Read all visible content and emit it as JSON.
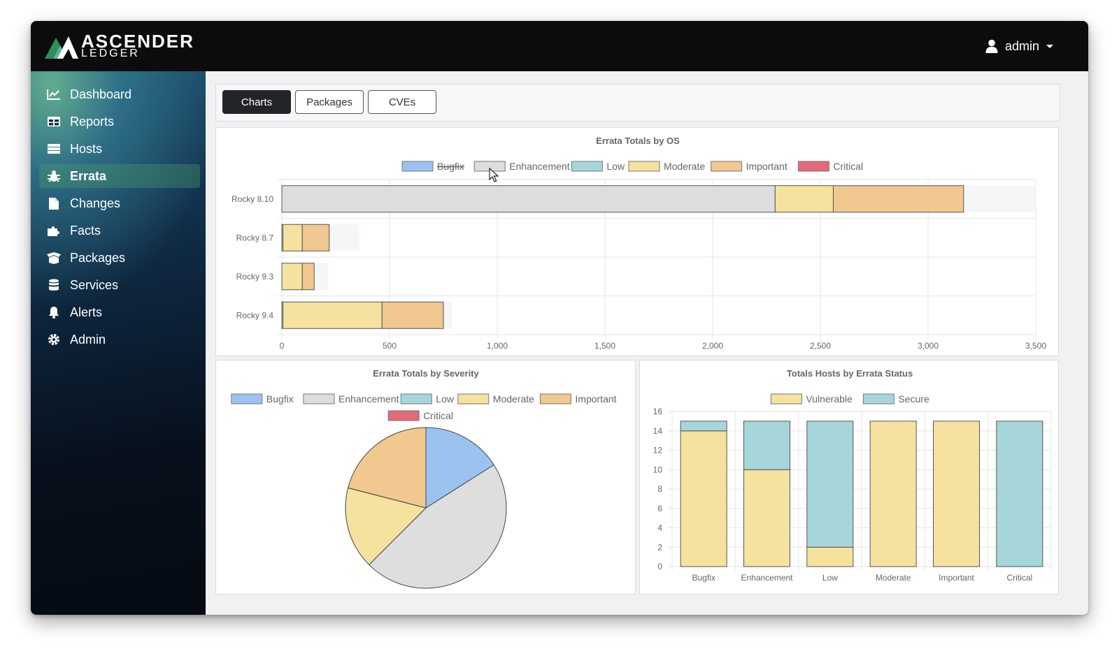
{
  "app": {
    "brand_top": "ASCENDER",
    "brand_bottom": "LEDGER",
    "user": "admin"
  },
  "colors": {
    "Bugfix": "#9cc2ef",
    "Enhancement": "#dedede",
    "Low": "#a6d6da",
    "Moderate": "#f5e29e",
    "Important": "#f0c890",
    "Critical": "#e36a79",
    "Vulnerable": "#f5e29e",
    "Secure": "#a6d6da"
  },
  "sidebar": {
    "items": [
      {
        "label": "Dashboard",
        "icon": "chart-line-icon",
        "active": false
      },
      {
        "label": "Reports",
        "icon": "table-icon",
        "active": false
      },
      {
        "label": "Hosts",
        "icon": "server-icon",
        "active": false
      },
      {
        "label": "Errata",
        "icon": "bug-icon",
        "active": true
      },
      {
        "label": "Changes",
        "icon": "file-icon",
        "active": false
      },
      {
        "label": "Facts",
        "icon": "puzzle-icon",
        "active": false
      },
      {
        "label": "Packages",
        "icon": "box-open-icon",
        "active": false
      },
      {
        "label": "Services",
        "icon": "database-icon",
        "active": false
      },
      {
        "label": "Alerts",
        "icon": "bell-icon",
        "active": false
      },
      {
        "label": "Admin",
        "icon": "gear-icon",
        "active": false
      }
    ]
  },
  "tabs": [
    {
      "label": "Charts",
      "active": true
    },
    {
      "label": "Packages",
      "active": false
    },
    {
      "label": "CVEs",
      "active": false
    }
  ],
  "chart_data": [
    {
      "id": "os",
      "type": "bar",
      "orientation": "horizontal",
      "stacked": true,
      "title": "Errata Totals by OS",
      "categories": [
        "Rocky 8.10",
        "Rocky 8.7",
        "Rocky 9.3",
        "Rocky 9.4"
      ],
      "xlim": [
        0,
        3500
      ],
      "xticks": [
        0,
        500,
        1000,
        1500,
        2000,
        2500,
        3000,
        3500
      ],
      "xtick_labels": [
        "0",
        "500",
        "1,000",
        "1,500",
        "2,000",
        "2,500",
        "3,000",
        "3,500"
      ],
      "hidden_series": [
        "Bugfix"
      ],
      "hidden_totals": [
        3500,
        360,
        215,
        790
      ],
      "series": [
        {
          "name": "Bugfix",
          "values": [
            0,
            0,
            0,
            0
          ]
        },
        {
          "name": "Enhancement",
          "values": [
            2290,
            5,
            0,
            5
          ]
        },
        {
          "name": "Low",
          "values": [
            0,
            0,
            0,
            0
          ]
        },
        {
          "name": "Moderate",
          "values": [
            270,
            90,
            95,
            460
          ]
        },
        {
          "name": "Important",
          "values": [
            605,
            125,
            55,
            285
          ]
        },
        {
          "name": "Critical",
          "values": [
            0,
            0,
            0,
            0
          ]
        }
      ]
    },
    {
      "id": "severity",
      "type": "pie",
      "title": "Errata Totals by Severity",
      "labels": [
        "Bugfix",
        "Enhancement",
        "Low",
        "Moderate",
        "Important",
        "Critical"
      ],
      "values": [
        16,
        46.5,
        0,
        16.5,
        21,
        0
      ]
    },
    {
      "id": "hosts",
      "type": "bar",
      "orientation": "vertical",
      "stacked": true,
      "title": "Totals Hosts by Errata Status",
      "categories": [
        "Bugfix",
        "Enhancement",
        "Low",
        "Moderate",
        "Important",
        "Critical"
      ],
      "ylim": [
        0,
        16
      ],
      "yticks": [
        0,
        2,
        4,
        6,
        8,
        10,
        12,
        14,
        16
      ],
      "series": [
        {
          "name": "Vulnerable",
          "values": [
            14,
            10,
            2,
            15,
            15,
            0
          ]
        },
        {
          "name": "Secure",
          "values": [
            1,
            5,
            13,
            0,
            0,
            15
          ]
        }
      ]
    }
  ]
}
